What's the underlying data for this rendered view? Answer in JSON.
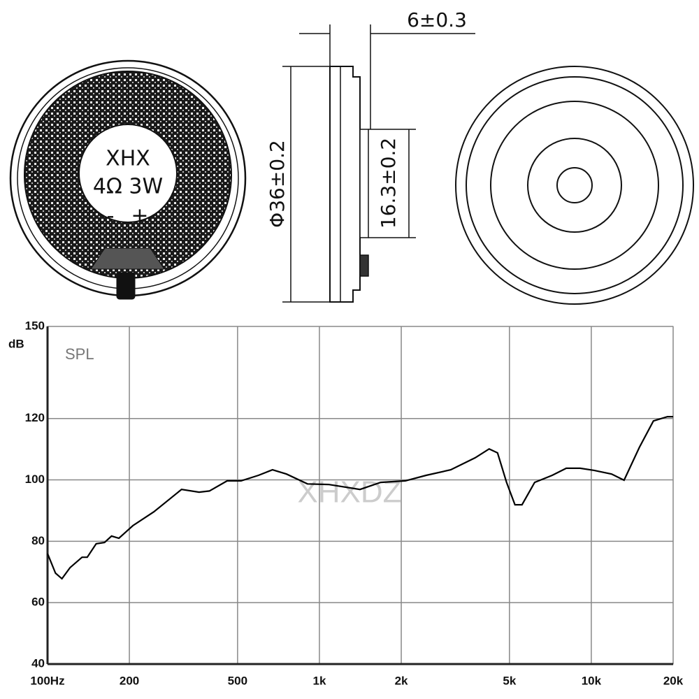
{
  "drawing": {
    "brand": "XHX",
    "rating": "4Ω 3W",
    "minus": "-",
    "plus": "+",
    "depth": "6±0.3",
    "diameter": "Φ36±0.2",
    "magnet": "16.3±0.2"
  },
  "chart_data": {
    "type": "line",
    "log_x": true,
    "grid": true,
    "color": "#000000",
    "y_label": "dB",
    "annotation": "SPL",
    "watermark": "XHXDZ",
    "xlim": [
      100,
      20000
    ],
    "xticks": [
      {
        "value": 100,
        "label": "100Hz"
      },
      200,
      500,
      {
        "value": 1000,
        "label": "1k"
      },
      {
        "value": 2000,
        "label": "2k"
      },
      {
        "value": 5000,
        "label": "5k"
      },
      {
        "value": 10000,
        "label": "10k"
      },
      {
        "value": 20000,
        "label": "20k"
      }
    ],
    "ylim": [
      40,
      150
    ],
    "yticks": [
      40,
      60,
      80,
      100,
      120,
      150
    ],
    "x": [
      100,
      107,
      113,
      121,
      134,
      140,
      151,
      162,
      172,
      183,
      206,
      246,
      311,
      361,
      394,
      458,
      515,
      597,
      672,
      757,
      904,
      1080,
      1410,
      1680,
      2070,
      2470,
      3040,
      3740,
      4210,
      4520,
      4880,
      5240,
      5560,
      6190,
      7180,
      8090,
      9100,
      10240,
      11870,
      13200,
      15030,
      16920,
      19060,
      20000
    ],
    "series": [
      {
        "name": "SPL",
        "color": "#000000",
        "values": [
          76,
          69.6,
          67.8,
          71.4,
          74.8,
          74.8,
          79.2,
          79.6,
          81.7,
          81,
          85.1,
          89.6,
          96.9,
          96,
          96.4,
          99.7,
          99.7,
          101.5,
          103.3,
          101.9,
          98.7,
          98.5,
          96.9,
          99.2,
          99.7,
          101.5,
          103.3,
          107.2,
          110.1,
          108.8,
          99.2,
          91.9,
          91.9,
          99.2,
          101.5,
          103.8,
          103.8,
          103.1,
          101.9,
          99.9,
          110.6,
          119.2,
          120.6,
          120.6
        ]
      }
    ]
  }
}
